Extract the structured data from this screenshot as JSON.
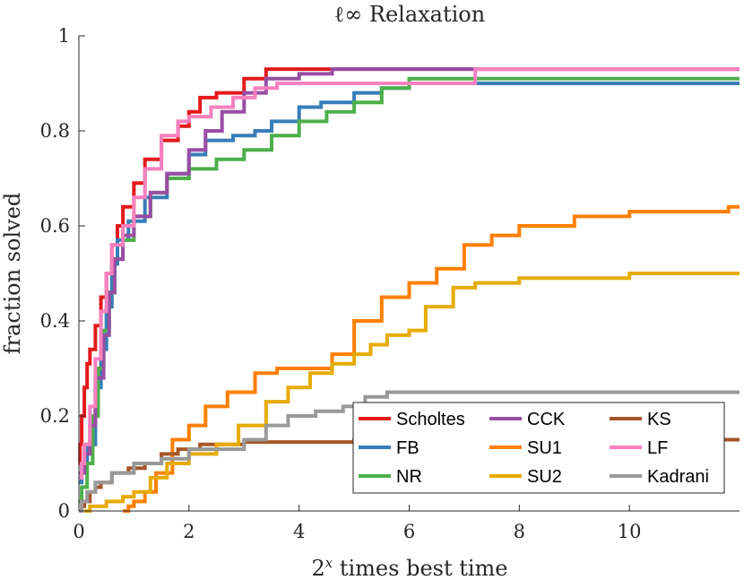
{
  "chart_data": {
    "type": "line",
    "step": true,
    "title": "ℓ∞ Relaxation",
    "xlabel": "2^x times best time",
    "ylabel": "fraction solved",
    "xlim": [
      0,
      12
    ],
    "ylim": [
      0,
      1
    ],
    "xticks": [
      0,
      2,
      4,
      6,
      8,
      10
    ],
    "yticks": [
      0,
      0.2,
      0.4,
      0.6,
      0.8,
      1
    ],
    "ytick_labels": [
      "0",
      "0.2",
      "0.4",
      "0.6",
      "0.8",
      "1"
    ],
    "grid": false,
    "legend_position": "bottom-right",
    "series": [
      {
        "name": "Scholtes",
        "color": "#e31a1c",
        "points": [
          [
            0,
            0.1
          ],
          [
            0.02,
            0.14
          ],
          [
            0.05,
            0.2
          ],
          [
            0.1,
            0.26
          ],
          [
            0.15,
            0.31
          ],
          [
            0.2,
            0.34
          ],
          [
            0.3,
            0.39
          ],
          [
            0.4,
            0.45
          ],
          [
            0.5,
            0.5
          ],
          [
            0.6,
            0.56
          ],
          [
            0.7,
            0.6
          ],
          [
            0.8,
            0.64
          ],
          [
            1.0,
            0.69
          ],
          [
            1.2,
            0.74
          ],
          [
            1.5,
            0.78
          ],
          [
            1.8,
            0.81
          ],
          [
            2.0,
            0.84
          ],
          [
            2.2,
            0.87
          ],
          [
            2.5,
            0.88
          ],
          [
            3.0,
            0.91
          ],
          [
            3.4,
            0.93
          ],
          [
            4.5,
            0.93
          ],
          [
            12,
            0.93
          ]
        ]
      },
      {
        "name": "FB",
        "color": "#377eb8",
        "points": [
          [
            0,
            0.06
          ],
          [
            0.05,
            0.1
          ],
          [
            0.15,
            0.14
          ],
          [
            0.3,
            0.26
          ],
          [
            0.4,
            0.34
          ],
          [
            0.5,
            0.43
          ],
          [
            0.6,
            0.52
          ],
          [
            0.7,
            0.57
          ],
          [
            0.9,
            0.61
          ],
          [
            1.2,
            0.66
          ],
          [
            1.6,
            0.71
          ],
          [
            2.0,
            0.75
          ],
          [
            2.3,
            0.78
          ],
          [
            2.8,
            0.79
          ],
          [
            3.2,
            0.8
          ],
          [
            3.5,
            0.82
          ],
          [
            4.0,
            0.85
          ],
          [
            4.4,
            0.86
          ],
          [
            5.0,
            0.88
          ],
          [
            5.5,
            0.89
          ],
          [
            6.0,
            0.9
          ],
          [
            12,
            0.9
          ]
        ]
      },
      {
        "name": "NR",
        "color": "#4daf4a",
        "points": [
          [
            0,
            0.02
          ],
          [
            0.05,
            0.05
          ],
          [
            0.15,
            0.1
          ],
          [
            0.25,
            0.2
          ],
          [
            0.35,
            0.3
          ],
          [
            0.45,
            0.38
          ],
          [
            0.55,
            0.46
          ],
          [
            0.65,
            0.53
          ],
          [
            0.8,
            0.57
          ],
          [
            1.0,
            0.62
          ],
          [
            1.3,
            0.67
          ],
          [
            1.6,
            0.7
          ],
          [
            2.0,
            0.72
          ],
          [
            2.5,
            0.74
          ],
          [
            3.0,
            0.76
          ],
          [
            3.5,
            0.79
          ],
          [
            4.0,
            0.82
          ],
          [
            4.5,
            0.84
          ],
          [
            5.0,
            0.86
          ],
          [
            5.5,
            0.89
          ],
          [
            6.0,
            0.91
          ],
          [
            12,
            0.91
          ]
        ]
      },
      {
        "name": "CCK",
        "color": "#984ea3",
        "points": [
          [
            0,
            0.08
          ],
          [
            0.1,
            0.12
          ],
          [
            0.2,
            0.18
          ],
          [
            0.3,
            0.28
          ],
          [
            0.45,
            0.37
          ],
          [
            0.55,
            0.46
          ],
          [
            0.65,
            0.53
          ],
          [
            0.8,
            0.58
          ],
          [
            1.0,
            0.62
          ],
          [
            1.3,
            0.67
          ],
          [
            1.6,
            0.71
          ],
          [
            2.0,
            0.76
          ],
          [
            2.3,
            0.8
          ],
          [
            2.6,
            0.84
          ],
          [
            3.0,
            0.88
          ],
          [
            3.4,
            0.91
          ],
          [
            4.0,
            0.92
          ],
          [
            4.6,
            0.93
          ],
          [
            12,
            0.93
          ]
        ]
      },
      {
        "name": "SU1",
        "color": "#ff7f00",
        "points": [
          [
            0.8,
            0
          ],
          [
            0.9,
            0.01
          ],
          [
            1.0,
            0.02
          ],
          [
            1.2,
            0.04
          ],
          [
            1.4,
            0.08
          ],
          [
            1.7,
            0.15
          ],
          [
            2.0,
            0.18
          ],
          [
            2.3,
            0.22
          ],
          [
            2.7,
            0.25
          ],
          [
            3.2,
            0.29
          ],
          [
            3.6,
            0.3
          ],
          [
            4.2,
            0.3
          ],
          [
            4.6,
            0.33
          ],
          [
            5.0,
            0.4
          ],
          [
            5.5,
            0.45
          ],
          [
            6.0,
            0.48
          ],
          [
            6.5,
            0.51
          ],
          [
            7.0,
            0.56
          ],
          [
            7.5,
            0.58
          ],
          [
            8.0,
            0.6
          ],
          [
            9.0,
            0.62
          ],
          [
            10.0,
            0.63
          ],
          [
            11.0,
            0.63
          ],
          [
            11.8,
            0.64
          ],
          [
            12,
            0.64
          ]
        ]
      },
      {
        "name": "LF",
        "color": "#f781bf",
        "points": [
          [
            0,
            0.07
          ],
          [
            0.05,
            0.1
          ],
          [
            0.1,
            0.14
          ],
          [
            0.2,
            0.22
          ],
          [
            0.3,
            0.32
          ],
          [
            0.4,
            0.42
          ],
          [
            0.5,
            0.5
          ],
          [
            0.6,
            0.56
          ],
          [
            0.8,
            0.6
          ],
          [
            1.0,
            0.66
          ],
          [
            1.2,
            0.72
          ],
          [
            1.5,
            0.79
          ],
          [
            1.8,
            0.82
          ],
          [
            2.0,
            0.83
          ],
          [
            2.4,
            0.85
          ],
          [
            2.8,
            0.87
          ],
          [
            3.2,
            0.89
          ],
          [
            3.6,
            0.9
          ],
          [
            4.5,
            0.9
          ],
          [
            5.5,
            0.9
          ],
          [
            7.2,
            0.93
          ],
          [
            12,
            0.93
          ]
        ]
      },
      {
        "name": "KS",
        "color": "#a65628",
        "points": [
          [
            0,
            0
          ],
          [
            0.05,
            0.01
          ],
          [
            0.1,
            0.02
          ],
          [
            0.2,
            0.04
          ],
          [
            0.3,
            0.05
          ],
          [
            0.4,
            0.06
          ],
          [
            0.6,
            0.08
          ],
          [
            0.9,
            0.09
          ],
          [
            1.2,
            0.1
          ],
          [
            1.5,
            0.12
          ],
          [
            1.8,
            0.13
          ],
          [
            2.2,
            0.14
          ],
          [
            3.0,
            0.145
          ],
          [
            5.0,
            0.15
          ],
          [
            12,
            0.15
          ]
        ]
      },
      {
        "name": "SU2",
        "color": "#e6ab02",
        "points": [
          [
            0.1,
            0
          ],
          [
            0.2,
            0.01
          ],
          [
            0.5,
            0.02
          ],
          [
            0.8,
            0.03
          ],
          [
            1.0,
            0.04
          ],
          [
            1.3,
            0.07
          ],
          [
            1.6,
            0.1
          ],
          [
            2.0,
            0.12
          ],
          [
            2.5,
            0.14
          ],
          [
            2.9,
            0.18
          ],
          [
            3.4,
            0.23
          ],
          [
            3.8,
            0.26
          ],
          [
            4.2,
            0.29
          ],
          [
            4.6,
            0.31
          ],
          [
            5.0,
            0.33
          ],
          [
            5.3,
            0.35
          ],
          [
            5.6,
            0.37
          ],
          [
            6.0,
            0.38
          ],
          [
            6.3,
            0.43
          ],
          [
            6.8,
            0.47
          ],
          [
            7.2,
            0.48
          ],
          [
            8.0,
            0.49
          ],
          [
            10.0,
            0.5
          ],
          [
            12,
            0.5
          ]
        ]
      },
      {
        "name": "Kadrani",
        "color": "#999999",
        "points": [
          [
            0,
            0
          ],
          [
            0.05,
            0.02
          ],
          [
            0.15,
            0.04
          ],
          [
            0.3,
            0.06
          ],
          [
            0.6,
            0.08
          ],
          [
            1.0,
            0.1
          ],
          [
            1.5,
            0.11
          ],
          [
            2.0,
            0.13
          ],
          [
            2.5,
            0.13
          ],
          [
            3.0,
            0.15
          ],
          [
            3.4,
            0.18
          ],
          [
            3.8,
            0.2
          ],
          [
            4.3,
            0.21
          ],
          [
            4.8,
            0.22
          ],
          [
            5.2,
            0.24
          ],
          [
            5.6,
            0.25
          ],
          [
            12,
            0.25
          ]
        ]
      }
    ],
    "legend_layout": [
      [
        "Scholtes",
        "CCK",
        "KS"
      ],
      [
        "FB",
        "SU1",
        "LF"
      ],
      [
        "NR",
        "SU2",
        "Kadrani"
      ]
    ]
  }
}
